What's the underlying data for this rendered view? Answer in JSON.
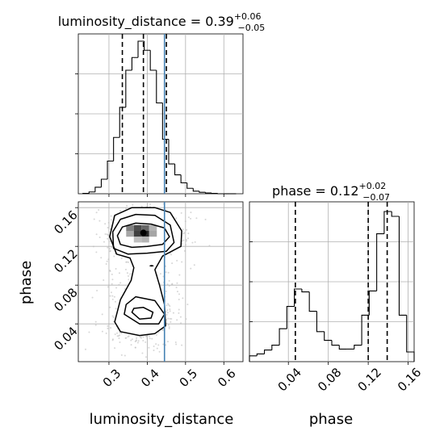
{
  "chart_data": [
    {
      "type": "histogram",
      "panel": "luminosity_distance-marginal",
      "title": {
        "prefix": "luminosity_distance = ",
        "value": "0.39",
        "upper": "+0.06",
        "lower": "−0.05"
      },
      "x": [
        0.232,
        0.248,
        0.264,
        0.28,
        0.296,
        0.312,
        0.328,
        0.344,
        0.36,
        0.376,
        0.392,
        0.408,
        0.424,
        0.44,
        0.456,
        0.472,
        0.488,
        0.504,
        0.52,
        0.536,
        0.552,
        0.568,
        0.584,
        0.6,
        0.616,
        0.632
      ],
      "values": [
        1,
        5,
        18,
        40,
        90,
        155,
        238,
        340,
        375,
        420,
        395,
        340,
        250,
        150,
        82,
        52,
        30,
        15,
        7,
        4,
        2,
        1,
        0,
        0,
        0
      ],
      "xlim": [
        0.22,
        0.65
      ],
      "ylim": [
        0,
        440
      ],
      "quantile_lines": [
        0.335,
        0.39,
        0.45
      ],
      "truth": 0.445,
      "truth_color": "#4682b4",
      "xticks": [
        0.3,
        0.4,
        0.5,
        0.6
      ],
      "grid": true
    },
    {
      "type": "histogram",
      "panel": "phase-marginal",
      "title": {
        "prefix": "phase = ",
        "value": "0.12",
        "upper": "+0.02",
        "lower": "−0.07"
      },
      "x": [
        0.001,
        0.0085,
        0.016,
        0.0235,
        0.031,
        0.0385,
        0.046,
        0.0535,
        0.061,
        0.0685,
        0.076,
        0.0835,
        0.091,
        0.0985,
        0.106,
        0.1135,
        0.121,
        0.1285,
        0.136,
        0.1435,
        0.151,
        0.1585,
        0.166
      ],
      "values": [
        6,
        8,
        12,
        17,
        34,
        57,
        75,
        72,
        52,
        31,
        22,
        17,
        13,
        13,
        17,
        48,
        73,
        132,
        155,
        150,
        48,
        10
      ],
      "xlim": [
        0.001,
        0.166
      ],
      "ylim": [
        0,
        165
      ],
      "quantile_lines": [
        0.047,
        0.12,
        0.139
      ],
      "xticks": [
        0.04,
        0.08,
        0.12,
        0.16
      ],
      "xlabel": "phase",
      "grid": true
    },
    {
      "type": "heatmap",
      "panel": "joint-2d",
      "xlabel": "luminosity_distance",
      "ylabel": "phase",
      "xlim": [
        0.22,
        0.65
      ],
      "ylim": [
        0.001,
        0.166
      ],
      "xticks": [
        0.3,
        0.4,
        0.5,
        0.6
      ],
      "yticks": [
        0.04,
        0.08,
        0.12,
        0.16
      ],
      "truth_x": 0.445,
      "truth_color": "#4682b4",
      "density_cells": [
        {
          "x": [
            0.345,
            0.365
          ],
          "y": [
            0.136,
            0.142
          ],
          "shade": 0.5
        },
        {
          "x": [
            0.365,
            0.385
          ],
          "y": [
            0.136,
            0.142
          ],
          "shade": 0.7
        },
        {
          "x": [
            0.385,
            0.405
          ],
          "y": [
            0.136,
            0.142
          ],
          "shade": 0.6
        },
        {
          "x": [
            0.405,
            0.425
          ],
          "y": [
            0.136,
            0.142
          ],
          "shade": 0.3
        },
        {
          "x": [
            0.345,
            0.365
          ],
          "y": [
            0.13,
            0.136
          ],
          "shade": 0.35
        },
        {
          "x": [
            0.365,
            0.385
          ],
          "y": [
            0.13,
            0.136
          ],
          "shade": 0.75
        },
        {
          "x": [
            0.385,
            0.405
          ],
          "y": [
            0.13,
            0.136
          ],
          "shade": 0.85
        },
        {
          "x": [
            0.405,
            0.425
          ],
          "y": [
            0.13,
            0.136
          ],
          "shade": 0.35
        },
        {
          "x": [
            0.365,
            0.385
          ],
          "y": [
            0.124,
            0.13
          ],
          "shade": 0.25
        },
        {
          "x": [
            0.385,
            0.405
          ],
          "y": [
            0.124,
            0.13
          ],
          "shade": 0.3
        }
      ],
      "contours": [
        [
          [
            0.33,
            0.122
          ],
          [
            0.36,
            0.119
          ],
          [
            0.4,
            0.12
          ],
          [
            0.44,
            0.122
          ],
          [
            0.458,
            0.13
          ],
          [
            0.445,
            0.139
          ],
          [
            0.41,
            0.143
          ],
          [
            0.37,
            0.144
          ],
          [
            0.335,
            0.14
          ],
          [
            0.322,
            0.131
          ]
        ],
        [
          [
            0.312,
            0.118
          ],
          [
            0.35,
            0.112
          ],
          [
            0.4,
            0.113
          ],
          [
            0.45,
            0.115
          ],
          [
            0.47,
            0.124
          ],
          [
            0.46,
            0.142
          ],
          [
            0.42,
            0.152
          ],
          [
            0.37,
            0.153
          ],
          [
            0.33,
            0.148
          ],
          [
            0.31,
            0.135
          ]
        ],
        [
          [
            0.302,
            0.13
          ],
          [
            0.32,
            0.112
          ],
          [
            0.355,
            0.108
          ],
          [
            0.365,
            0.098
          ],
          [
            0.358,
            0.085
          ],
          [
            0.33,
            0.065
          ],
          [
            0.315,
            0.042
          ],
          [
            0.33,
            0.032
          ],
          [
            0.38,
            0.028
          ],
          [
            0.42,
            0.03
          ],
          [
            0.448,
            0.038
          ],
          [
            0.445,
            0.06
          ],
          [
            0.432,
            0.08
          ],
          [
            0.42,
            0.096
          ],
          [
            0.44,
            0.11
          ],
          [
            0.488,
            0.12
          ],
          [
            0.49,
            0.136
          ],
          [
            0.46,
            0.155
          ],
          [
            0.42,
            0.16
          ],
          [
            0.36,
            0.16
          ],
          [
            0.315,
            0.152
          ]
        ],
        [
          [
            0.34,
            0.05
          ],
          [
            0.38,
            0.04
          ],
          [
            0.43,
            0.04
          ],
          [
            0.445,
            0.05
          ],
          [
            0.42,
            0.064
          ],
          [
            0.37,
            0.068
          ],
          [
            0.345,
            0.06
          ]
        ],
        [
          [
            0.36,
            0.052
          ],
          [
            0.38,
            0.045
          ],
          [
            0.41,
            0.046
          ],
          [
            0.415,
            0.052
          ],
          [
            0.39,
            0.057
          ],
          [
            0.365,
            0.056
          ]
        ]
      ],
      "scatter_seed": 7
    }
  ]
}
